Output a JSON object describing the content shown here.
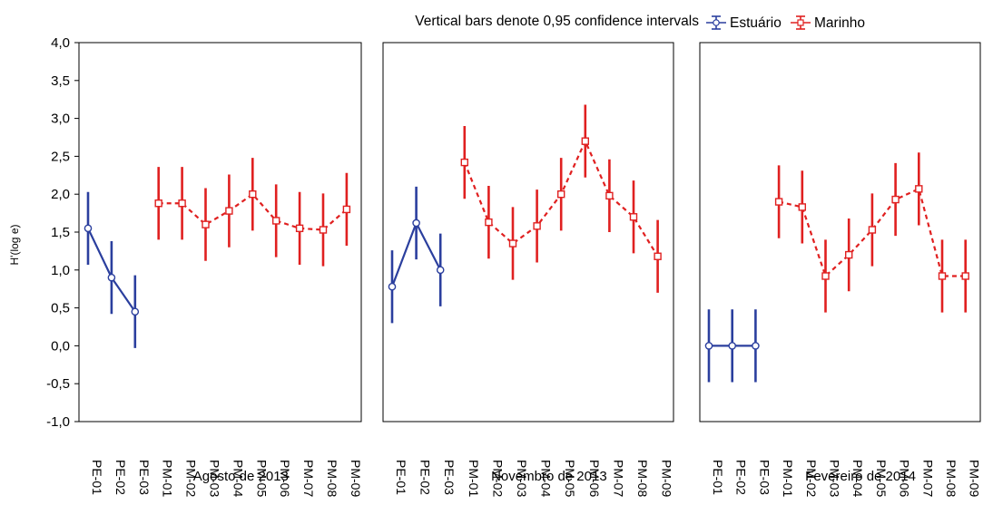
{
  "chart_data": {
    "type": "line",
    "note": "Vertical bars denote 0,95 confidence intervals",
    "ylabel": "H'(log e)",
    "ylim": [
      -1.0,
      4.0
    ],
    "yticks": [
      "-1,0",
      "-0,5",
      "0,0",
      "0,5",
      "1,0",
      "1,5",
      "2,0",
      "2,5",
      "3,0",
      "3,5",
      "4,0"
    ],
    "error_bars": "0,95 confidence intervals",
    "legend": {
      "position": "top-right",
      "entries": [
        {
          "name": "Estuário",
          "color": "#2b3f9e",
          "marker": "circle",
          "line": "solid"
        },
        {
          "name": "Marinho",
          "color": "#e02020",
          "marker": "square",
          "line": "dashed"
        }
      ]
    },
    "categories": [
      "PE-01",
      "PE-02",
      "PE-03",
      "PM-01",
      "PM-02",
      "PM-03",
      "PM-04",
      "PM-05",
      "PM-06",
      "PM-07",
      "PM-08",
      "PM-09"
    ],
    "panels": [
      {
        "label": "Agosto de 2013",
        "series": [
          {
            "name": "Estuário",
            "x": [
              "PE-01",
              "PE-02",
              "PE-03"
            ],
            "values": [
              1.55,
              0.9,
              0.45
            ],
            "ci_half": [
              0.48,
              0.48,
              0.48
            ]
          },
          {
            "name": "Marinho",
            "x": [
              "PM-01",
              "PM-02",
              "PM-03",
              "PM-04",
              "PM-05",
              "PM-06",
              "PM-07",
              "PM-08",
              "PM-09"
            ],
            "values": [
              1.88,
              1.88,
              1.6,
              1.78,
              2.0,
              1.65,
              1.55,
              1.53,
              1.8
            ],
            "ci_half": [
              0.48,
              0.48,
              0.48,
              0.48,
              0.48,
              0.48,
              0.48,
              0.48,
              0.48
            ]
          }
        ]
      },
      {
        "label": "Novembro de 2013",
        "series": [
          {
            "name": "Estuário",
            "x": [
              "PE-01",
              "PE-02",
              "PE-03"
            ],
            "values": [
              0.78,
              1.62,
              1.0
            ],
            "ci_half": [
              0.48,
              0.48,
              0.48
            ]
          },
          {
            "name": "Marinho",
            "x": [
              "PM-01",
              "PM-02",
              "PM-03",
              "PM-04",
              "PM-05",
              "PM-06",
              "PM-07",
              "PM-08",
              "PM-09"
            ],
            "values": [
              2.42,
              1.63,
              1.35,
              1.58,
              2.0,
              2.7,
              1.98,
              1.7,
              1.18
            ],
            "ci_half": [
              0.48,
              0.48,
              0.48,
              0.48,
              0.48,
              0.48,
              0.48,
              0.48,
              0.48
            ]
          }
        ]
      },
      {
        "label": "Fevereiro de 2014",
        "series": [
          {
            "name": "Estuário",
            "x": [
              "PE-01",
              "PE-02",
              "PE-03"
            ],
            "values": [
              0.0,
              0.0,
              0.0
            ],
            "ci_half": [
              0.48,
              0.48,
              0.48
            ]
          },
          {
            "name": "Marinho",
            "x": [
              "PM-01",
              "PM-02",
              "PM-03",
              "PM-04",
              "PM-05",
              "PM-06",
              "PM-07",
              "PM-08",
              "PM-09"
            ],
            "values": [
              1.9,
              1.83,
              0.92,
              1.2,
              1.53,
              1.93,
              2.07,
              0.92,
              0.92
            ],
            "ci_half": [
              0.48,
              0.48,
              0.48,
              0.48,
              0.48,
              0.48,
              0.48,
              0.48,
              0.48
            ]
          }
        ]
      }
    ],
    "grid": false
  }
}
